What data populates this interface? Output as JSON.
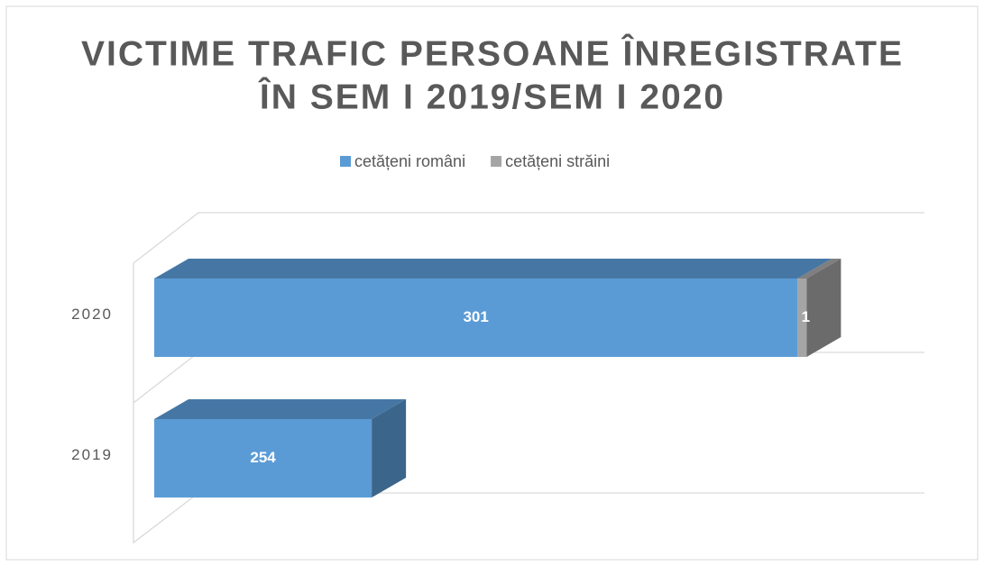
{
  "chart_data": {
    "type": "bar3d_stacked_horizontal",
    "title": [
      "VICTIME TRAFIC PERSOANE ÎNREGISTRATE",
      "ÎN SEM I 2019/SEM I 2020"
    ],
    "categories": [
      "2019",
      "2020"
    ],
    "series": [
      {
        "name": "cetățeni români",
        "color": "#5b9bd5",
        "values": [
          254,
          301
        ]
      },
      {
        "name": "cetățeni străini",
        "color": "#a5a5a5",
        "values": [
          null,
          1
        ]
      }
    ],
    "xlim": [
      230,
      315
    ],
    "legend": "top"
  }
}
